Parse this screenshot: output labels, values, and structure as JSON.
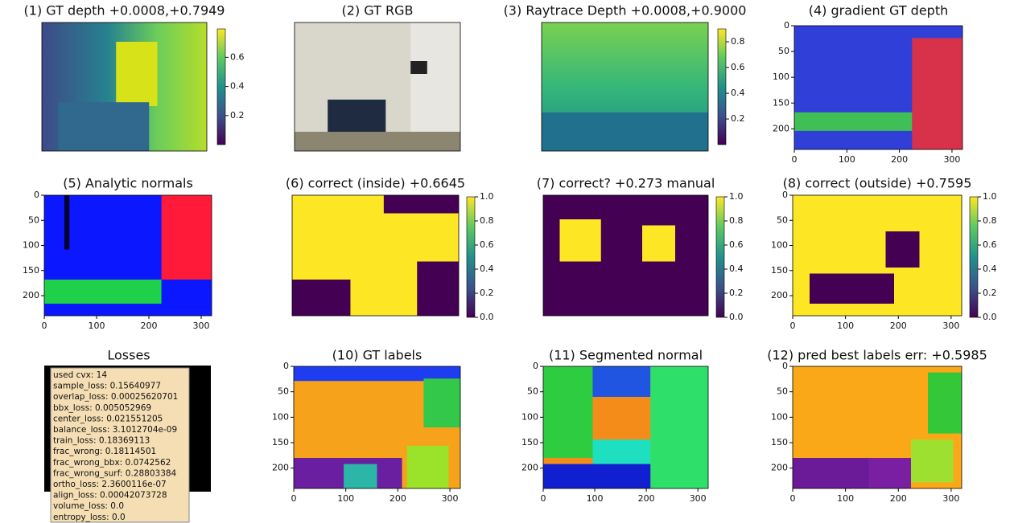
{
  "panels": [
    {
      "title": "(1) GT depth +0.0008,+0.7949",
      "colorbar": {
        "lim": [
          0.0008,
          0.7949
        ],
        "ticks": [
          0.2,
          0.4,
          0.6
        ]
      }
    },
    {
      "title": "(2) GT RGB"
    },
    {
      "title": "(3) Raytrace Depth +0.0008,+0.9000",
      "colorbar": {
        "lim": [
          0.0008,
          0.9
        ],
        "ticks": [
          0.2,
          0.4,
          0.6,
          0.8
        ]
      }
    },
    {
      "title": "(4) gradient GT depth",
      "xlim": [
        0,
        320
      ],
      "ylim": [
        0,
        240
      ],
      "xticks": [
        0,
        100,
        200,
        300
      ],
      "yticks": [
        0,
        50,
        100,
        150,
        200
      ]
    },
    {
      "title": "(5) Analytic normals",
      "xlim": [
        0,
        320
      ],
      "ylim": [
        0,
        240
      ],
      "xticks": [
        0,
        100,
        200,
        300
      ],
      "yticks": [
        0,
        50,
        100,
        150,
        200
      ]
    },
    {
      "title": "(6) correct (inside) +0.6645",
      "colorbar": {
        "lim": [
          0,
          1
        ],
        "ticks": [
          {
            "value": 0,
            "label": "0.0"
          },
          0.2,
          0.4,
          0.6,
          0.8,
          {
            "value": 1,
            "label": "1.0"
          }
        ]
      }
    },
    {
      "title": "(7) correct? +0.273 manual",
      "colorbar": {
        "lim": [
          0,
          1
        ],
        "ticks": [
          {
            "value": 0,
            "label": "0.0"
          },
          0.2,
          0.4,
          0.6,
          0.8,
          {
            "value": 1,
            "label": "1.0"
          }
        ]
      }
    },
    {
      "title": "(8) correct (outside) +0.7595",
      "xlim": [
        0,
        320
      ],
      "ylim": [
        0,
        240
      ],
      "xticks": [
        0,
        100,
        200,
        300
      ],
      "yticks": [
        0,
        50,
        100,
        150,
        200
      ],
      "colorbar": {
        "lim": [
          0,
          1
        ],
        "ticks": [
          {
            "value": 0,
            "label": "0.0"
          },
          0.2,
          0.4,
          0.6,
          0.8,
          {
            "value": 1,
            "label": "1.0"
          }
        ]
      }
    },
    {
      "title": "(10) GT labels",
      "xlim": [
        0,
        320
      ],
      "ylim": [
        0,
        240
      ],
      "xticks": [
        0,
        100,
        200,
        300
      ],
      "yticks": [
        0,
        50,
        100,
        150,
        200
      ]
    },
    {
      "title": "(11) Segmented normal",
      "xlim": [
        0,
        320
      ],
      "ylim": [
        0,
        240
      ],
      "xticks": [
        0,
        100,
        200,
        300
      ],
      "yticks": [
        0,
        50,
        100,
        150,
        200
      ]
    },
    {
      "title": "(12) pred best labels err: +0.5985",
      "xlim": [
        0,
        320
      ],
      "ylim": [
        0,
        240
      ],
      "xticks": [
        0,
        100,
        200,
        300
      ],
      "yticks": [
        0,
        50,
        100,
        150,
        200
      ]
    }
  ],
  "losses": {
    "title": "Losses",
    "lines": [
      "used cvx: 14",
      "sample_loss: 0.15640977",
      "overlap_loss: 0.00025620701",
      "bbx_loss: 0.005052969",
      "center_loss: 0.021551205",
      "balance_loss: 3.1012704e-09",
      "train_loss: 0.18369113",
      "frac_wrong: 0.18114501",
      "frac_wrong_bbx: 0.0742562",
      "frac_wrong_surf: 0.28803384",
      "ortho_loss: 2.3600116e-07",
      "align_loss: 0.00042073728",
      "volume_loss: 0.0",
      "entropy_loss: 0.0"
    ]
  }
}
